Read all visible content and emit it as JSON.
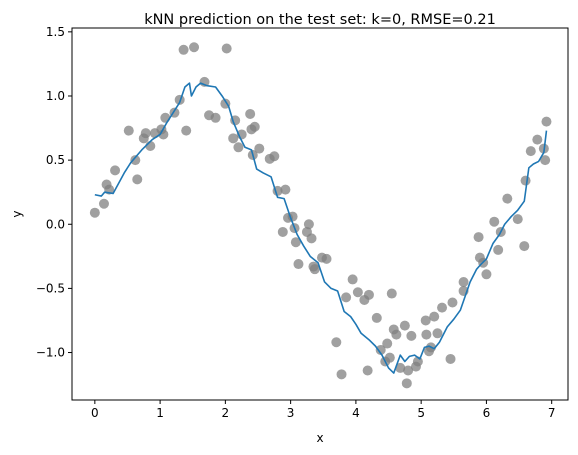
{
  "chart_data": {
    "type": "scatter",
    "title": "kNN prediction on the test set: k=0, RMSE=0.21",
    "xlabel": "x",
    "ylabel": "y",
    "xlim": [
      -0.35,
      7.25
    ],
    "ylim": [
      -1.37,
      1.53
    ],
    "xticks": [
      0,
      1,
      2,
      3,
      4,
      5,
      6,
      7
    ],
    "yticks": [
      -1.0,
      -0.5,
      0.0,
      0.5,
      1.0,
      1.5
    ],
    "xtick_labels": [
      "0",
      "1",
      "2",
      "3",
      "4",
      "5",
      "6",
      "7"
    ],
    "ytick_labels": [
      "−1.0",
      "−0.5",
      "0.0",
      "0.5",
      "1.0",
      "1.5"
    ],
    "grid": false,
    "legend": "none",
    "colors": {
      "points": "#808080",
      "line": "#1f77b4"
    },
    "series": [
      {
        "kind": "scatter",
        "points": [
          [
            0.0,
            0.09
          ],
          [
            0.14,
            0.16
          ],
          [
            0.18,
            0.31
          ],
          [
            0.22,
            0.27
          ],
          [
            0.31,
            0.42
          ],
          [
            0.52,
            0.73
          ],
          [
            0.62,
            0.5
          ],
          [
            0.65,
            0.35
          ],
          [
            0.75,
            0.67
          ],
          [
            0.78,
            0.71
          ],
          [
            0.85,
            0.61
          ],
          [
            0.92,
            0.71
          ],
          [
            1.02,
            0.74
          ],
          [
            1.05,
            0.7
          ],
          [
            1.08,
            0.83
          ],
          [
            1.22,
            0.87
          ],
          [
            1.3,
            0.97
          ],
          [
            1.4,
            0.73
          ],
          [
            1.36,
            1.36
          ],
          [
            1.52,
            1.38
          ],
          [
            1.68,
            1.11
          ],
          [
            1.75,
            0.85
          ],
          [
            1.85,
            0.83
          ],
          [
            2.0,
            0.94
          ],
          [
            2.02,
            1.37
          ],
          [
            2.12,
            0.67
          ],
          [
            2.15,
            0.81
          ],
          [
            2.2,
            0.6
          ],
          [
            2.25,
            0.7
          ],
          [
            2.38,
            0.86
          ],
          [
            2.4,
            0.74
          ],
          [
            2.42,
            0.54
          ],
          [
            2.45,
            0.76
          ],
          [
            2.52,
            0.59
          ],
          [
            2.68,
            0.51
          ],
          [
            2.75,
            0.53
          ],
          [
            2.8,
            0.26
          ],
          [
            2.88,
            -0.06
          ],
          [
            2.92,
            0.27
          ],
          [
            2.96,
            0.05
          ],
          [
            3.03,
            0.06
          ],
          [
            3.06,
            -0.03
          ],
          [
            3.08,
            -0.14
          ],
          [
            3.12,
            -0.31
          ],
          [
            3.25,
            -0.06
          ],
          [
            3.28,
            0.0
          ],
          [
            3.32,
            -0.11
          ],
          [
            3.35,
            -0.33
          ],
          [
            3.37,
            -0.35
          ],
          [
            3.48,
            -0.26
          ],
          [
            3.55,
            -0.27
          ],
          [
            3.7,
            -0.92
          ],
          [
            3.78,
            -1.17
          ],
          [
            3.85,
            -0.57
          ],
          [
            3.95,
            -0.43
          ],
          [
            4.03,
            -0.53
          ],
          [
            4.13,
            -0.59
          ],
          [
            4.18,
            -1.14
          ],
          [
            4.2,
            -0.55
          ],
          [
            4.32,
            -0.73
          ],
          [
            4.38,
            -0.98
          ],
          [
            4.45,
            -1.07
          ],
          [
            4.48,
            -0.93
          ],
          [
            4.52,
            -1.04
          ],
          [
            4.55,
            -0.54
          ],
          [
            4.58,
            -0.82
          ],
          [
            4.62,
            -0.86
          ],
          [
            4.68,
            -1.12
          ],
          [
            4.75,
            -0.79
          ],
          [
            4.78,
            -1.24
          ],
          [
            4.8,
            -1.14
          ],
          [
            4.85,
            -0.87
          ],
          [
            4.92,
            -1.11
          ],
          [
            4.95,
            -1.07
          ],
          [
            5.08,
            -0.86
          ],
          [
            5.07,
            -0.75
          ],
          [
            5.12,
            -0.99
          ],
          [
            5.15,
            -0.96
          ],
          [
            5.2,
            -0.72
          ],
          [
            5.25,
            -0.85
          ],
          [
            5.32,
            -0.65
          ],
          [
            5.45,
            -1.05
          ],
          [
            5.48,
            -0.61
          ],
          [
            5.65,
            -0.52
          ],
          [
            5.65,
            -0.45
          ],
          [
            5.88,
            -0.1
          ],
          [
            5.9,
            -0.26
          ],
          [
            5.95,
            -0.3
          ],
          [
            6.0,
            -0.39
          ],
          [
            6.12,
            0.02
          ],
          [
            6.18,
            -0.2
          ],
          [
            6.22,
            -0.06
          ],
          [
            6.32,
            0.2
          ],
          [
            6.48,
            0.04
          ],
          [
            6.58,
            -0.17
          ],
          [
            6.6,
            0.34
          ],
          [
            6.68,
            0.57
          ],
          [
            6.78,
            0.66
          ],
          [
            6.88,
            0.59
          ],
          [
            6.9,
            0.5
          ],
          [
            6.92,
            0.8
          ]
        ]
      },
      {
        "kind": "line",
        "points": [
          [
            0.0,
            0.23
          ],
          [
            0.1,
            0.22
          ],
          [
            0.15,
            0.25
          ],
          [
            0.28,
            0.24
          ],
          [
            0.45,
            0.4
          ],
          [
            0.55,
            0.48
          ],
          [
            0.72,
            0.58
          ],
          [
            0.88,
            0.66
          ],
          [
            1.0,
            0.7
          ],
          [
            1.1,
            0.79
          ],
          [
            1.2,
            0.87
          ],
          [
            1.3,
            0.95
          ],
          [
            1.38,
            1.07
          ],
          [
            1.45,
            1.1
          ],
          [
            1.48,
            1.0
          ],
          [
            1.55,
            1.07
          ],
          [
            1.62,
            1.1
          ],
          [
            1.72,
            1.08
          ],
          [
            1.85,
            1.07
          ],
          [
            1.95,
            1.0
          ],
          [
            2.05,
            0.92
          ],
          [
            2.12,
            0.8
          ],
          [
            2.22,
            0.68
          ],
          [
            2.3,
            0.6
          ],
          [
            2.4,
            0.58
          ],
          [
            2.48,
            0.43
          ],
          [
            2.58,
            0.4
          ],
          [
            2.7,
            0.37
          ],
          [
            2.8,
            0.21
          ],
          [
            2.9,
            0.2
          ],
          [
            3.0,
            0.05
          ],
          [
            3.1,
            -0.08
          ],
          [
            3.2,
            -0.17
          ],
          [
            3.3,
            -0.25
          ],
          [
            3.42,
            -0.3
          ],
          [
            3.52,
            -0.45
          ],
          [
            3.62,
            -0.5
          ],
          [
            3.72,
            -0.52
          ],
          [
            3.82,
            -0.68
          ],
          [
            3.92,
            -0.72
          ],
          [
            4.0,
            -0.78
          ],
          [
            4.08,
            -0.85
          ],
          [
            4.2,
            -0.9
          ],
          [
            4.3,
            -0.95
          ],
          [
            4.4,
            -1.02
          ],
          [
            4.5,
            -1.12
          ],
          [
            4.58,
            -1.16
          ],
          [
            4.68,
            -1.02
          ],
          [
            4.75,
            -1.07
          ],
          [
            4.82,
            -1.03
          ],
          [
            4.9,
            -1.02
          ],
          [
            4.98,
            -1.05
          ],
          [
            5.05,
            -0.96
          ],
          [
            5.12,
            -0.95
          ],
          [
            5.2,
            -0.97
          ],
          [
            5.28,
            -0.92
          ],
          [
            5.4,
            -0.8
          ],
          [
            5.5,
            -0.74
          ],
          [
            5.6,
            -0.67
          ],
          [
            5.75,
            -0.45
          ],
          [
            5.85,
            -0.35
          ],
          [
            5.92,
            -0.31
          ],
          [
            6.0,
            -0.27
          ],
          [
            6.1,
            -0.15
          ],
          [
            6.2,
            -0.08
          ],
          [
            6.28,
            0.0
          ],
          [
            6.38,
            0.06
          ],
          [
            6.48,
            0.11
          ],
          [
            6.58,
            0.18
          ],
          [
            6.65,
            0.44
          ],
          [
            6.72,
            0.47
          ],
          [
            6.8,
            0.49
          ],
          [
            6.88,
            0.56
          ],
          [
            6.92,
            0.73
          ]
        ]
      }
    ]
  }
}
